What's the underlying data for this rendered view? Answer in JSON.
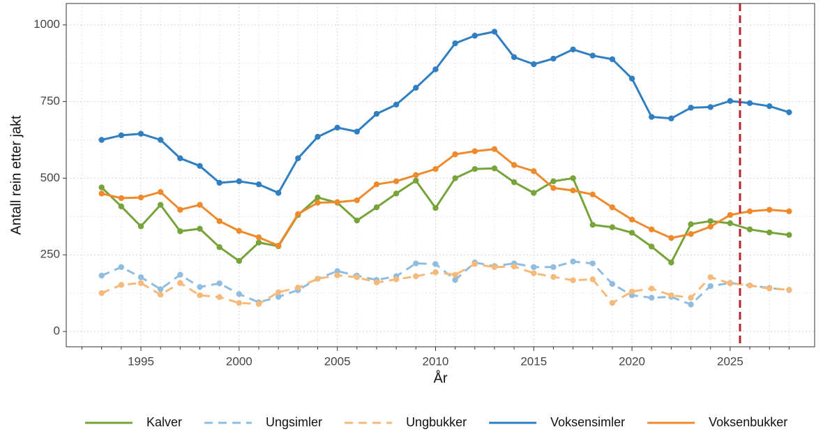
{
  "chart_data": {
    "type": "line",
    "x_label": "År",
    "y_label": "Antall rein etter jakt",
    "x": [
      1993,
      1994,
      1995,
      1996,
      1997,
      1998,
      1999,
      2000,
      2001,
      2002,
      2003,
      2004,
      2005,
      2006,
      2007,
      2008,
      2009,
      2010,
      2011,
      2012,
      2013,
      2014,
      2015,
      2016,
      2017,
      2018,
      2019,
      2020,
      2021,
      2022,
      2023,
      2024,
      2025,
      2026,
      2027,
      2028
    ],
    "series": [
      {
        "name": "Kalver",
        "color": "#77a33b",
        "dashed": false,
        "values": [
          470,
          408,
          343,
          413,
          327,
          335,
          275,
          230,
          290,
          278,
          380,
          437,
          420,
          362,
          405,
          450,
          492,
          403,
          500,
          530,
          532,
          487,
          452,
          490,
          500,
          348,
          340,
          322,
          277,
          225,
          350,
          360,
          353,
          333,
          323,
          315
        ]
      },
      {
        "name": "Ungsimler",
        "color": "#8fbde0",
        "dashed": true,
        "values": [
          182,
          210,
          177,
          138,
          185,
          145,
          157,
          122,
          95,
          113,
          135,
          172,
          197,
          182,
          168,
          180,
          222,
          220,
          168,
          225,
          213,
          222,
          210,
          210,
          228,
          222,
          155,
          118,
          110,
          113,
          88,
          148,
          158,
          150,
          142,
          135
        ]
      },
      {
        "name": "Ungbukker",
        "color": "#f5b97a",
        "dashed": true,
        "values": [
          125,
          152,
          158,
          120,
          158,
          118,
          112,
          93,
          90,
          128,
          143,
          172,
          183,
          177,
          160,
          170,
          180,
          193,
          185,
          220,
          210,
          212,
          190,
          178,
          167,
          170,
          93,
          130,
          140,
          118,
          110,
          177,
          157,
          150,
          140,
          136
        ]
      },
      {
        "name": "Voksensimler",
        "color": "#2f7fc1",
        "dashed": false,
        "values": [
          625,
          640,
          645,
          625,
          565,
          540,
          485,
          490,
          480,
          452,
          565,
          635,
          665,
          652,
          710,
          740,
          795,
          855,
          940,
          965,
          978,
          895,
          872,
          890,
          920,
          900,
          888,
          825,
          700,
          695,
          730,
          732,
          752,
          745,
          735,
          715
        ]
      },
      {
        "name": "Voksenbukker",
        "color": "#ee8a2c",
        "dashed": false,
        "values": [
          450,
          435,
          437,
          455,
          397,
          413,
          360,
          328,
          307,
          280,
          383,
          420,
          422,
          428,
          480,
          490,
          510,
          530,
          578,
          588,
          595,
          543,
          523,
          468,
          460,
          447,
          405,
          365,
          333,
          305,
          318,
          342,
          380,
          392,
          397,
          392
        ]
      }
    ],
    "xlim": [
      1991.2,
      2029.3
    ],
    "ylim": [
      -50,
      1070
    ],
    "xticks": [
      1995,
      2000,
      2005,
      2010,
      2015,
      2020,
      2025
    ],
    "xminorticks": [
      1992,
      1993,
      1994,
      1996,
      1997,
      1998,
      1999,
      2001,
      2002,
      2003,
      2004,
      2006,
      2007,
      2008,
      2009,
      2011,
      2012,
      2013,
      2014,
      2016,
      2017,
      2018,
      2019,
      2021,
      2022,
      2023,
      2024,
      2026,
      2027,
      2028
    ],
    "yticks": [
      0,
      250,
      500,
      750,
      1000
    ],
    "yminorticks": [
      125,
      375,
      625,
      875
    ],
    "vline": 2025.5,
    "vline_color": "#b5262e",
    "grid": true,
    "legend": "bottom"
  }
}
